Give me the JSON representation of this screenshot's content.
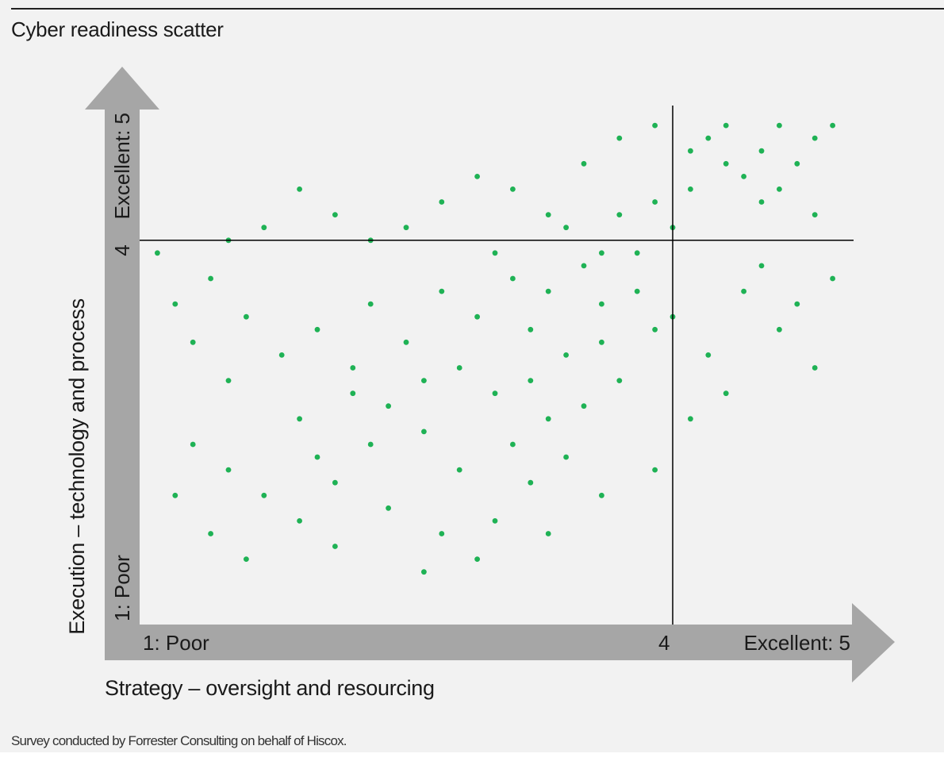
{
  "header": {
    "title": "Cyber readiness scatter"
  },
  "footer": {
    "source": "Survey conducted by Forrester Consulting on behalf of Hiscox."
  },
  "colors": {
    "point": "#1fb255",
    "arrow": "#a6a6a6",
    "background": "#f2f2f2",
    "reference_line": "#000000"
  },
  "chart_data": {
    "type": "scatter",
    "title": "Cyber readiness scatter",
    "xlabel": "Strategy – oversight and resourcing",
    "ylabel": "Execution – technology and process",
    "xlim": [
      1,
      5
    ],
    "ylim": [
      1,
      5
    ],
    "x_ticks": [
      {
        "value": 1,
        "label": "1: Poor"
      },
      {
        "value": 4,
        "label": "4"
      },
      {
        "value": 5,
        "label": "Excellent: 5"
      }
    ],
    "y_ticks": [
      {
        "value": 1,
        "label": "1: Poor"
      },
      {
        "value": 4,
        "label": "4"
      },
      {
        "value": 5,
        "label": "Excellent: 5"
      }
    ],
    "reference_lines": {
      "x": 4,
      "y": 4
    },
    "grid": false,
    "legend": "none",
    "series": [
      {
        "points": [
          [
            3.1,
            3.7
          ],
          [
            3.3,
            3.6
          ],
          [
            3.5,
            3.8
          ],
          [
            2.9,
            3.4
          ],
          [
            3.2,
            3.3
          ],
          [
            3.6,
            3.5
          ],
          [
            3.8,
            3.9
          ],
          [
            3.4,
            4.1
          ],
          [
            3.0,
            3.9
          ],
          [
            2.7,
            3.6
          ],
          [
            3.7,
            4.2
          ],
          [
            3.9,
            4.3
          ],
          [
            4.1,
            4.4
          ],
          [
            4.3,
            4.6
          ],
          [
            4.5,
            4.7
          ],
          [
            4.2,
            4.8
          ],
          [
            4.4,
            4.5
          ],
          [
            4.6,
            4.9
          ],
          [
            4.7,
            4.6
          ],
          [
            4.0,
            4.1
          ],
          [
            2.5,
            3.2
          ],
          [
            2.3,
            3.5
          ],
          [
            2.6,
            2.9
          ],
          [
            2.8,
            3.0
          ],
          [
            3.0,
            2.8
          ],
          [
            3.2,
            2.9
          ],
          [
            3.4,
            3.1
          ],
          [
            3.6,
            3.2
          ],
          [
            2.4,
            2.7
          ],
          [
            2.2,
            3.0
          ],
          [
            1.8,
            3.1
          ],
          [
            1.6,
            3.4
          ],
          [
            1.5,
            2.9
          ],
          [
            1.3,
            3.2
          ],
          [
            1.9,
            2.6
          ],
          [
            2.0,
            2.3
          ],
          [
            2.1,
            2.1
          ],
          [
            2.3,
            2.4
          ],
          [
            2.6,
            2.5
          ],
          [
            2.8,
            2.2
          ],
          [
            3.1,
            2.4
          ],
          [
            3.3,
            2.6
          ],
          [
            3.5,
            2.7
          ],
          [
            3.7,
            2.9
          ],
          [
            3.9,
            3.3
          ],
          [
            3.8,
            3.6
          ],
          [
            3.6,
            3.9
          ],
          [
            3.3,
            4.2
          ],
          [
            3.1,
            4.4
          ],
          [
            2.9,
            4.5
          ],
          [
            2.7,
            4.3
          ],
          [
            2.5,
            4.1
          ],
          [
            2.3,
            4.0
          ],
          [
            2.1,
            4.2
          ],
          [
            1.9,
            4.4
          ],
          [
            1.7,
            4.1
          ],
          [
            1.5,
            4.0
          ],
          [
            1.4,
            3.7
          ],
          [
            1.2,
            3.5
          ],
          [
            1.1,
            3.9
          ],
          [
            4.8,
            4.8
          ],
          [
            4.9,
            4.9
          ],
          [
            4.6,
            4.4
          ],
          [
            4.8,
            4.2
          ],
          [
            4.5,
            4.3
          ],
          [
            4.3,
            4.9
          ],
          [
            4.1,
            4.7
          ],
          [
            3.9,
            4.9
          ],
          [
            3.7,
            4.8
          ],
          [
            3.5,
            4.6
          ],
          [
            4.4,
            3.6
          ],
          [
            4.6,
            3.3
          ],
          [
            4.8,
            3.0
          ],
          [
            4.2,
            3.1
          ],
          [
            4.0,
            3.4
          ],
          [
            4.5,
            3.8
          ],
          [
            4.7,
            3.5
          ],
          [
            4.9,
            3.7
          ],
          [
            4.3,
            2.8
          ],
          [
            4.1,
            2.6
          ],
          [
            1.2,
            2.0
          ],
          [
            1.4,
            1.7
          ],
          [
            1.6,
            1.5
          ],
          [
            1.3,
            2.4
          ],
          [
            1.5,
            2.2
          ],
          [
            1.7,
            2.0
          ],
          [
            1.9,
            1.8
          ],
          [
            2.1,
            1.6
          ],
          [
            2.4,
            1.9
          ],
          [
            2.7,
            1.7
          ],
          [
            3.0,
            1.8
          ],
          [
            3.3,
            1.7
          ],
          [
            3.6,
            2.0
          ],
          [
            3.9,
            2.2
          ],
          [
            2.9,
            1.5
          ],
          [
            2.6,
            1.4
          ],
          [
            3.2,
            2.1
          ],
          [
            3.4,
            2.3
          ],
          [
            2.2,
            2.8
          ],
          [
            2.0,
            3.3
          ]
        ]
      }
    ]
  }
}
